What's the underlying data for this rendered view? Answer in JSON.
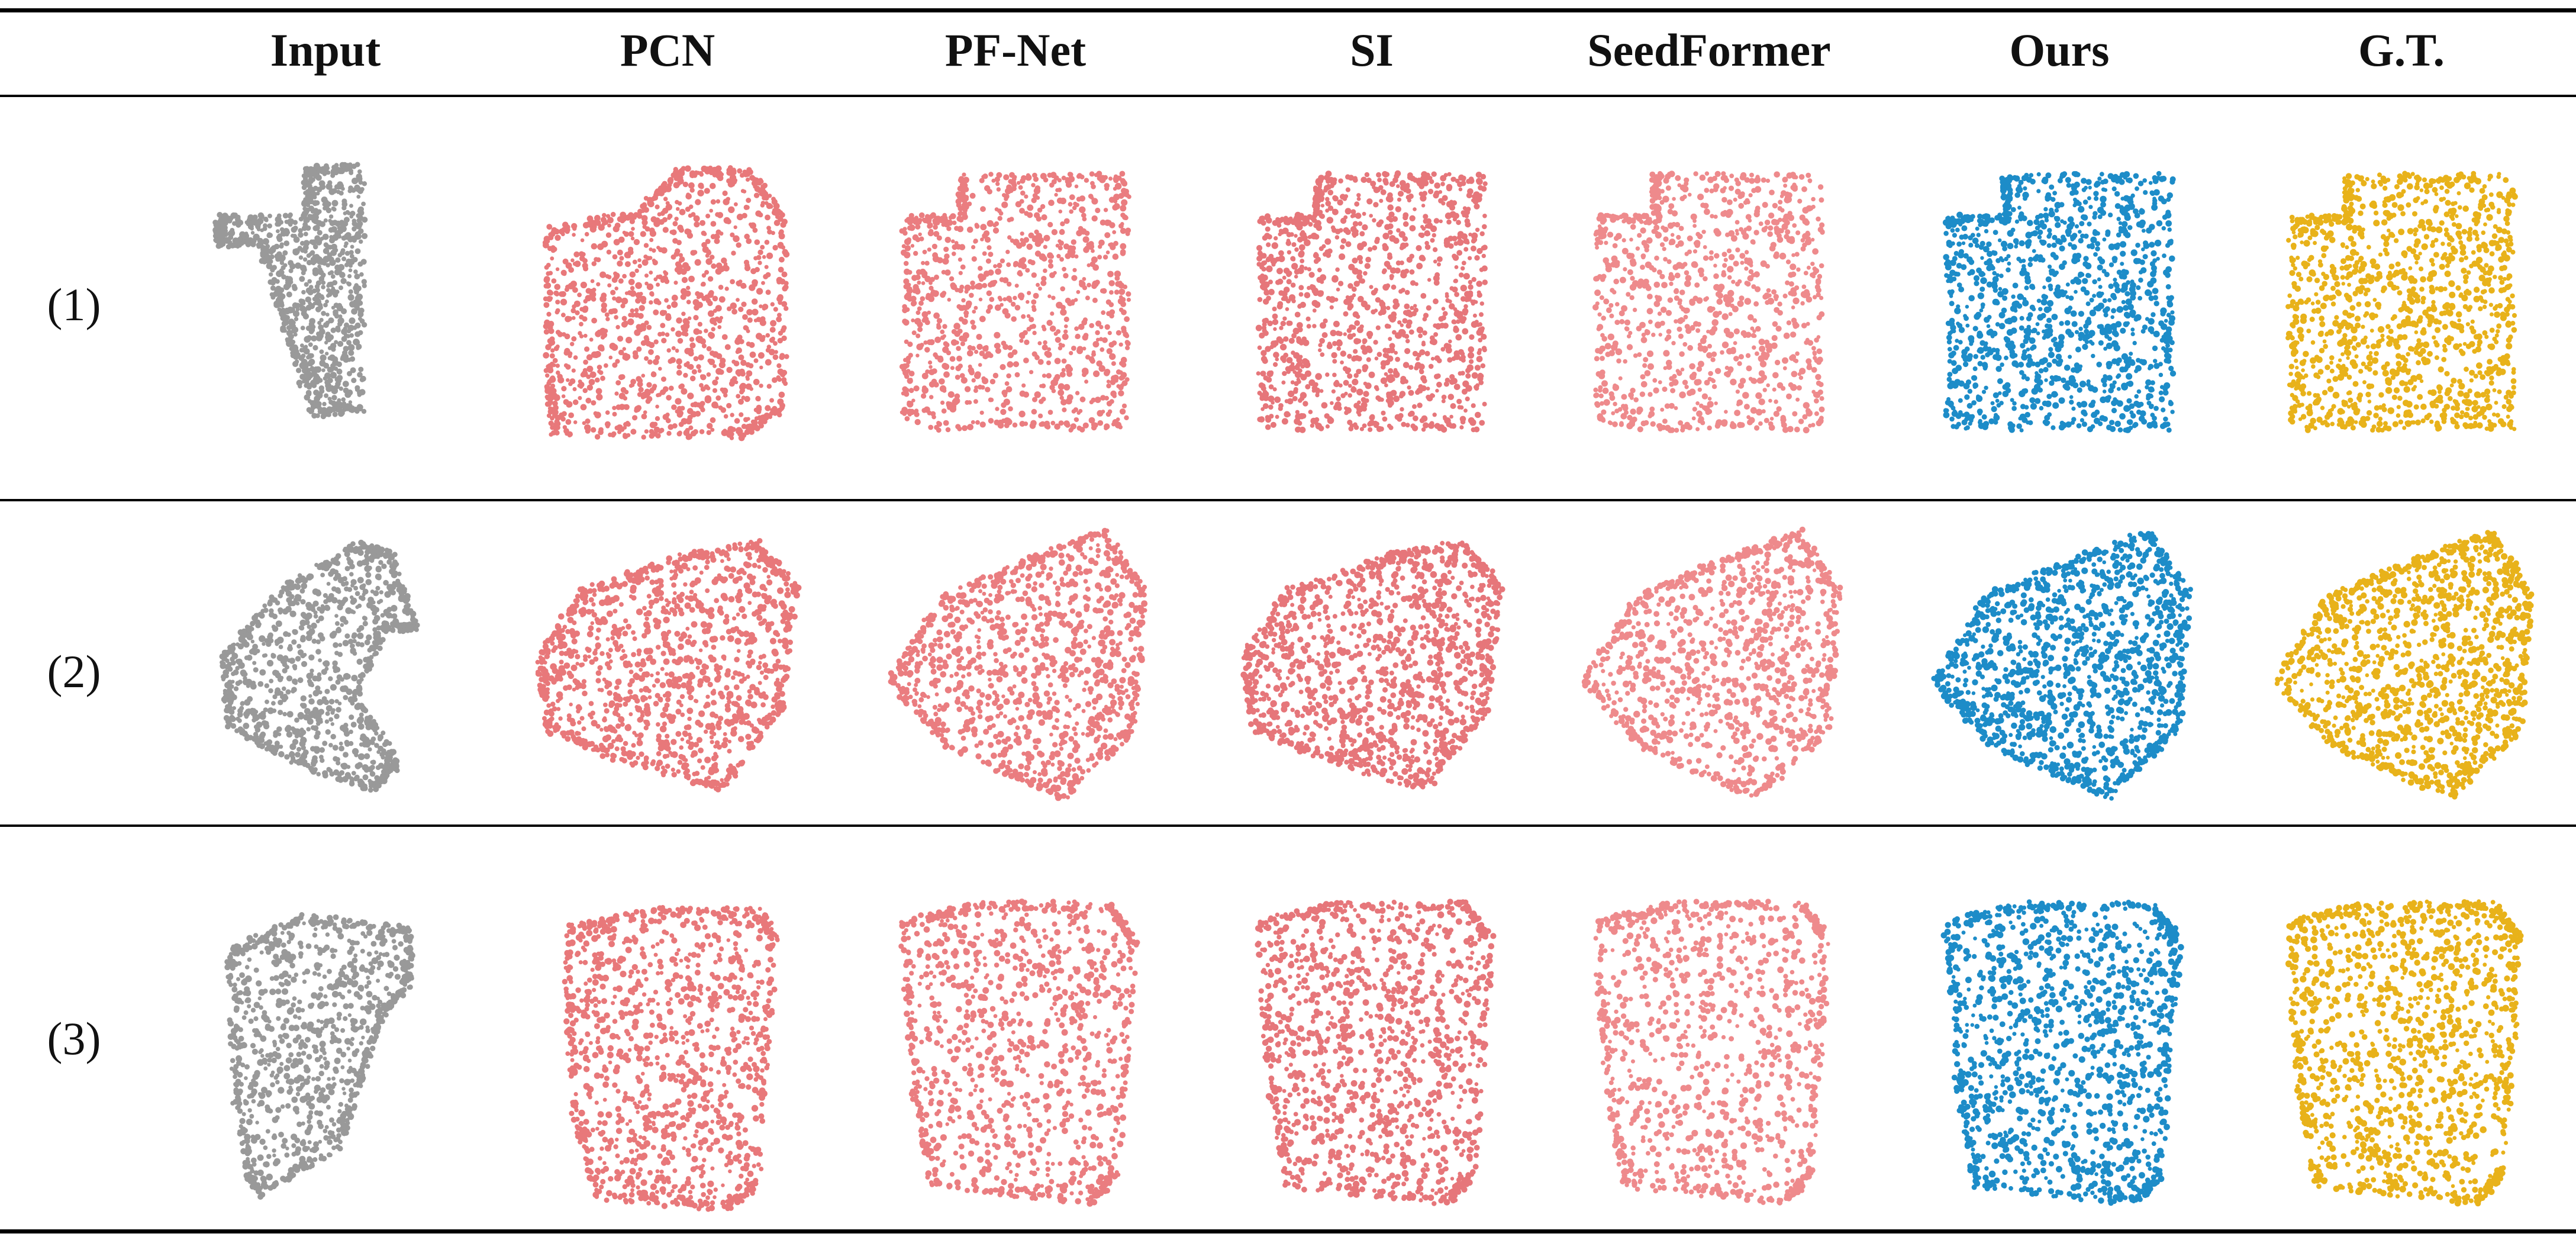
{
  "columns": [
    {
      "key": "input",
      "label": "Input",
      "color": "#999999"
    },
    {
      "key": "pcn",
      "label": "PCN",
      "color": "#e8787a"
    },
    {
      "key": "pfnet",
      "label": "PF-Net",
      "color": "#ea7d80"
    },
    {
      "key": "si",
      "label": "SI",
      "color": "#e6767a"
    },
    {
      "key": "seedformer",
      "label": "SeedFormer",
      "color": "#ee8a8c"
    },
    {
      "key": "ours",
      "label": "Ours",
      "color": "#1d8cc8"
    },
    {
      "key": "gt",
      "label": "G.T.",
      "color": "#e8b21a"
    }
  ],
  "rows": [
    {
      "label": "(1)"
    },
    {
      "label": "(2)"
    },
    {
      "label": "(3)"
    }
  ]
}
